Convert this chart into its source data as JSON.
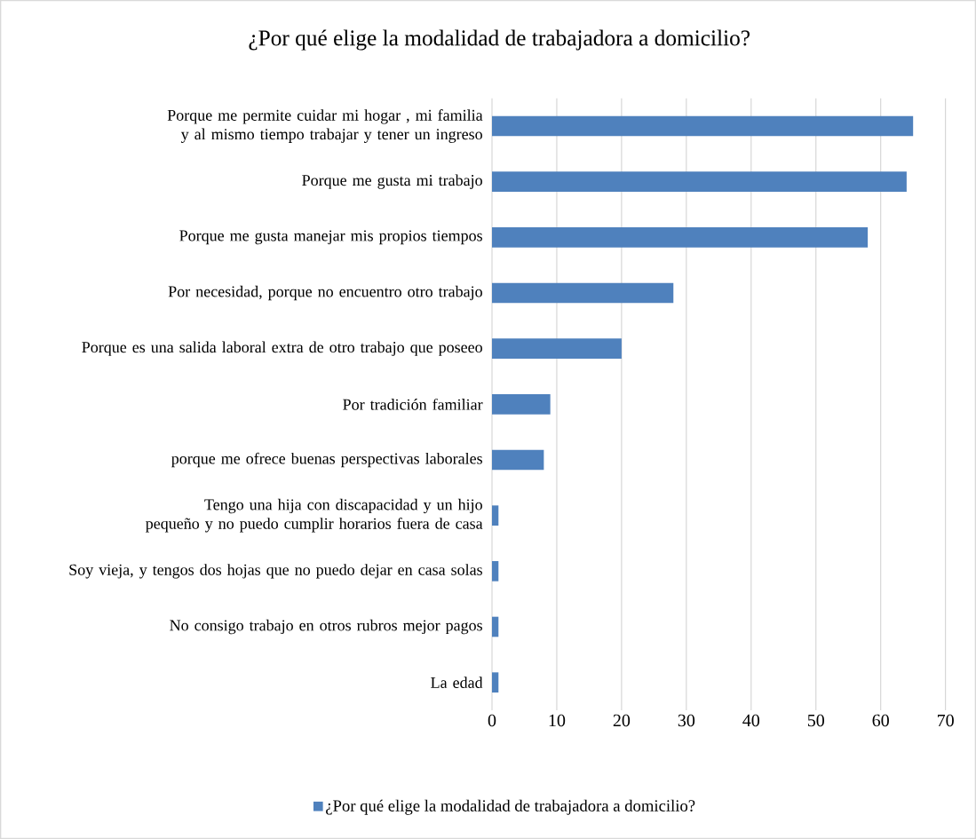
{
  "chart_data": {
    "type": "bar",
    "orientation": "horizontal",
    "title": "¿Por qué elige la modalidad de trabajadora a domicilio?",
    "categories": [
      "Porque me permite cuidar mi hogar , mi familia y al mismo tiempo trabajar y tener un ingreso",
      "Porque me gusta mi trabajo",
      "Porque me gusta manejar mis propios tiempos",
      "Por necesidad, porque no encuentro otro trabajo",
      "Porque es una salida laboral extra de otro trabajo que poseeo",
      "Por tradición familiar",
      "porque me ofrece buenas perspectivas laborales",
      "Tengo una hija con discapacidad y un hijo pequeño y no puedo cumplir horarios fuera de casa",
      "Soy vieja, y tengos dos hojas que no puedo dejar en casa solas",
      "No consigo trabajo en otros rubros mejor pagos",
      "La edad"
    ],
    "series": [
      {
        "name": "¿Por qué elige la modalidad de trabajadora a domicilio?",
        "color": "#4f81bd",
        "values": [
          65,
          64,
          58,
          28,
          20,
          9,
          8,
          1,
          1,
          1,
          1
        ]
      }
    ],
    "xlim": [
      0,
      70
    ],
    "xticks": [
      0,
      10,
      20,
      30,
      40,
      50,
      60,
      70
    ],
    "grid": "x",
    "legend": "bottom"
  }
}
